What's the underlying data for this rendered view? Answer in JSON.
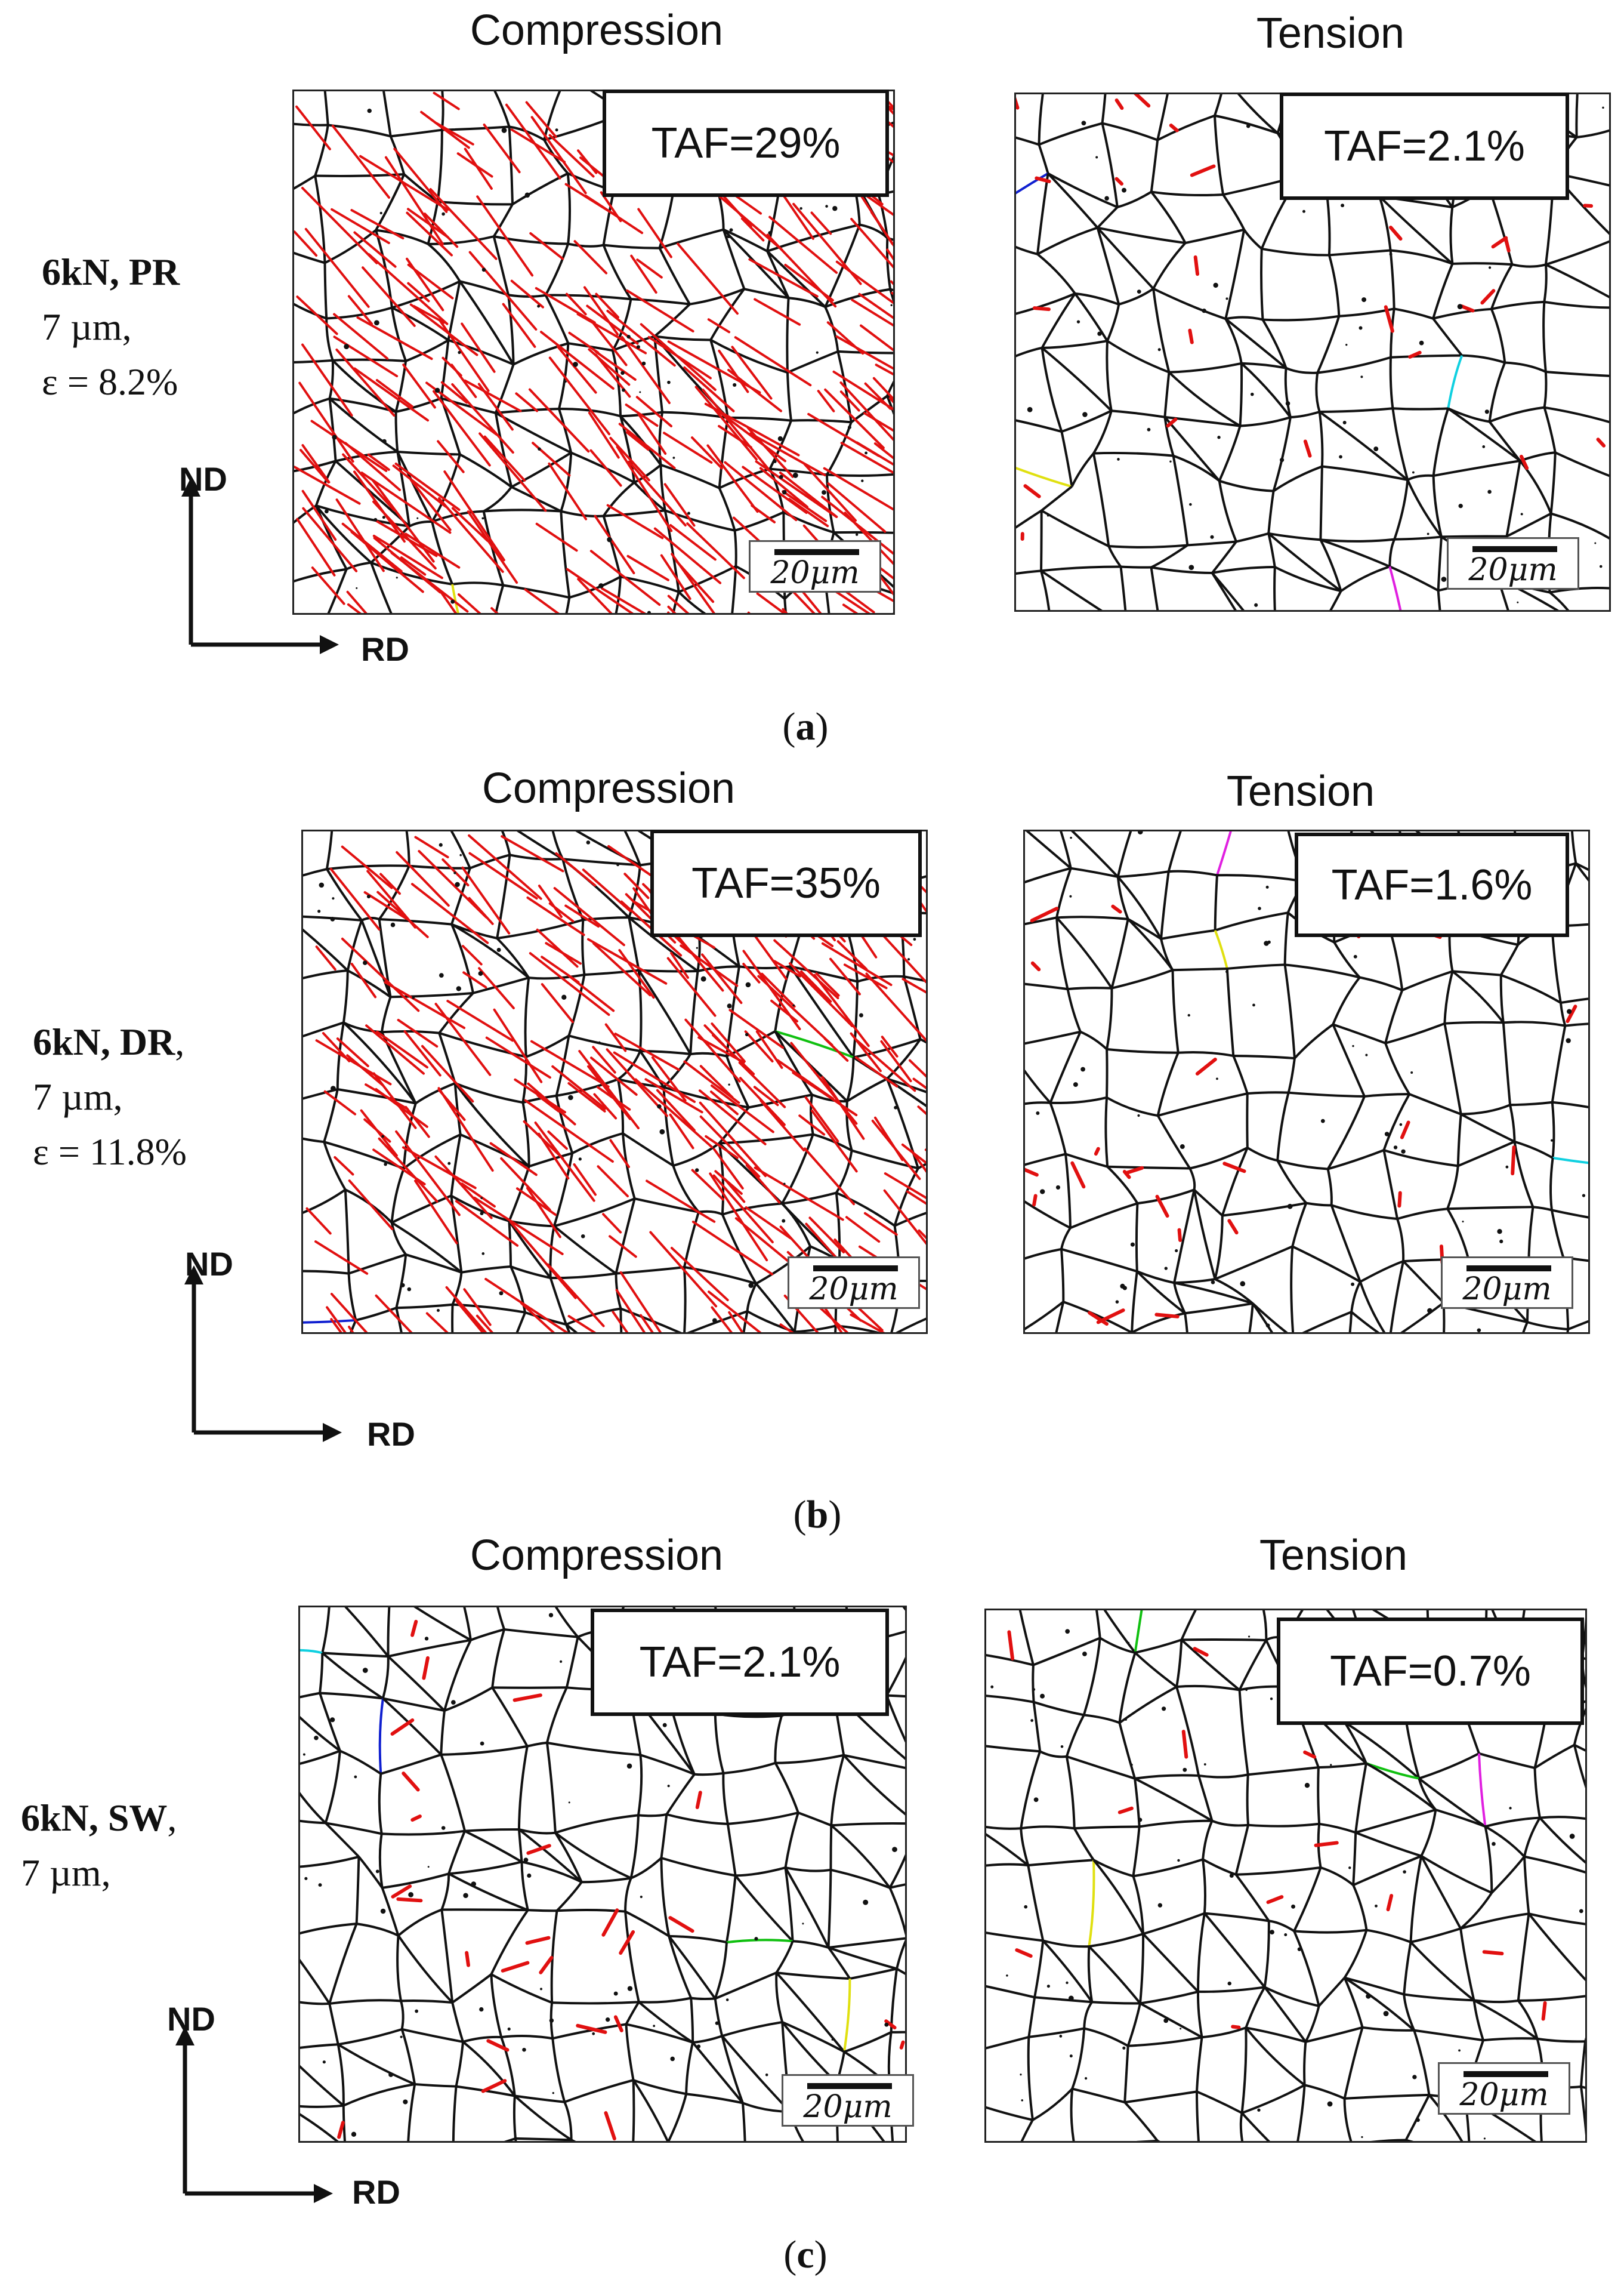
{
  "panels": [
    {
      "caption_letter": "a",
      "row_label": {
        "bold": "6kN, PR",
        "line2": "7 µm,",
        "line3": "ε = 8.2%"
      },
      "compression": {
        "title": "Compression",
        "taf": "TAF=29%",
        "scale": "20μm"
      },
      "tension": {
        "title": "Tension",
        "taf": "TAF=2.1%",
        "scale": "20μm"
      },
      "axes": {
        "vertical": "ND",
        "horizontal": "RD"
      }
    },
    {
      "caption_letter": "b",
      "row_label": {
        "bold": "6kN, DR",
        "line2": "7 µm,",
        "line3": "ε = 11.8%"
      },
      "compression": {
        "title": "Compression",
        "taf": "TAF=35%",
        "scale": "20μm"
      },
      "tension": {
        "title": "Tension",
        "taf": "TAF=1.6%",
        "scale": "20μm"
      },
      "axes": {
        "vertical": "ND",
        "horizontal": "RD"
      }
    },
    {
      "caption_letter": "c",
      "row_label": {
        "bold": "6kN, SW",
        "line2": "7 µm,"
      },
      "compression": {
        "title": "Compression",
        "taf": "TAF=2.1%",
        "scale": "20μm"
      },
      "tension": {
        "title": "Tension",
        "taf": "TAF=0.7%",
        "scale": "20μm"
      },
      "axes": {
        "vertical": "ND",
        "horizontal": "RD"
      }
    }
  ],
  "colors": {
    "twin": "#e11010",
    "grain": "#111111",
    "accent_green": "#10c010",
    "accent_blue": "#1020d0",
    "accent_magenta": "#e020e0",
    "accent_cyan": "#10d0e0",
    "accent_yellow": "#e0e010"
  },
  "icons": [
    "arrow-up-icon",
    "arrow-right-icon"
  ]
}
